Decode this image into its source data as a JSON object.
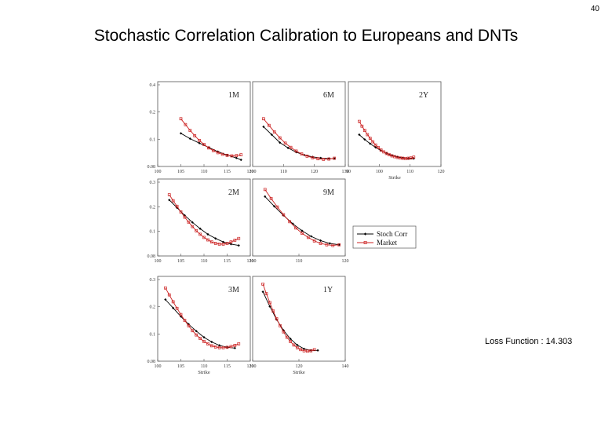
{
  "slide": {
    "page_number": "40",
    "title": "Stochastic Correlation Calibration to Europeans and DNTs",
    "loss_function": "Loss Function : 14.303"
  },
  "colors": {
    "stoch_corr": "#000000",
    "market": "#cc2222"
  },
  "chart_data": [
    {
      "type": "line",
      "title": "1M",
      "xlabel": "",
      "x_tick_labels": [
        "100",
        "105",
        "110",
        "115",
        "120"
      ],
      "y_tick_labels": [
        "0.4",
        "0.2",
        "0.1",
        "0.08"
      ],
      "xlim": [
        100,
        120
      ],
      "ylim": [
        0.08,
        0.4
      ],
      "series": [
        {
          "name": "Stoch Corr",
          "x": [
            105,
            107,
            109,
            111,
            113,
            115,
            117,
            118
          ],
          "y": [
            0.205,
            0.185,
            0.168,
            0.152,
            0.136,
            0.123,
            0.112,
            0.105
          ]
        },
        {
          "name": "Market",
          "x": [
            105,
            106,
            107,
            108,
            109,
            110,
            111,
            112,
            113,
            114,
            115,
            116,
            117,
            118
          ],
          "y": [
            0.26,
            0.238,
            0.216,
            0.196,
            0.178,
            0.163,
            0.15,
            0.14,
            0.132,
            0.126,
            0.122,
            0.12,
            0.121,
            0.124
          ]
        }
      ]
    },
    {
      "type": "line",
      "title": "6M",
      "xlabel": "",
      "x_tick_labels": [
        "100",
        "110",
        "120",
        "130"
      ],
      "y_tick_labels": [],
      "xlim": [
        96,
        130
      ],
      "ylim": [
        0.08,
        0.4
      ],
      "series": [
        {
          "name": "Stoch Corr",
          "x": [
            100,
            103,
            106,
            109,
            112,
            115,
            118,
            121,
            124,
            126
          ],
          "y": [
            0.23,
            0.2,
            0.17,
            0.15,
            0.134,
            0.123,
            0.116,
            0.112,
            0.11,
            0.11
          ]
        },
        {
          "name": "Market",
          "x": [
            100,
            102,
            104,
            106,
            108,
            110,
            112,
            114,
            116,
            118,
            120,
            122,
            124,
            126
          ],
          "y": [
            0.26,
            0.235,
            0.21,
            0.188,
            0.168,
            0.152,
            0.138,
            0.127,
            0.119,
            0.113,
            0.109,
            0.107,
            0.108,
            0.111
          ]
        }
      ]
    },
    {
      "type": "line",
      "title": "2Y",
      "xlabel": "Strike",
      "x_tick_labels": [
        "90",
        "100",
        "110",
        "120"
      ],
      "y_tick_labels": [],
      "xlim": [
        86,
        120
      ],
      "ylim": [
        0.08,
        0.4
      ],
      "series": [
        {
          "name": "Stoch Corr",
          "x": [
            90,
            92,
            94,
            96,
            98,
            100,
            102,
            104,
            106,
            108,
            110
          ],
          "y": [
            0.2,
            0.182,
            0.166,
            0.152,
            0.14,
            0.13,
            0.122,
            0.116,
            0.112,
            0.11,
            0.11
          ]
        },
        {
          "name": "Market",
          "x": [
            90,
            91,
            92,
            93,
            94,
            95,
            96,
            97,
            98,
            99,
            100,
            101,
            102,
            103,
            104,
            105,
            106,
            107,
            108,
            109,
            110
          ],
          "y": [
            0.25,
            0.232,
            0.216,
            0.2,
            0.186,
            0.173,
            0.161,
            0.151,
            0.142,
            0.135,
            0.129,
            0.124,
            0.12,
            0.117,
            0.114,
            0.112,
            0.111,
            0.11,
            0.111,
            0.112,
            0.115
          ]
        }
      ]
    },
    {
      "type": "line",
      "title": "2M",
      "xlabel": "",
      "x_tick_labels": [
        "100",
        "105",
        "110",
        "115",
        "120"
      ],
      "y_tick_labels": [
        "0.3",
        "0.2",
        "0.1",
        "0.08"
      ],
      "xlim": [
        100,
        124
      ],
      "ylim": [
        0.08,
        0.3
      ],
      "series": [
        {
          "name": "Stoch Corr",
          "x": [
            103,
            105,
            107,
            109,
            111,
            113,
            115,
            117,
            119,
            121
          ],
          "y": [
            0.24,
            0.218,
            0.196,
            0.176,
            0.158,
            0.142,
            0.13,
            0.12,
            0.114,
            0.11
          ]
        },
        {
          "name": "Market",
          "x": [
            103,
            104,
            105,
            106,
            107,
            108,
            109,
            110,
            111,
            112,
            113,
            114,
            115,
            116,
            117,
            118,
            119,
            120,
            121
          ],
          "y": [
            0.255,
            0.238,
            0.222,
            0.206,
            0.191,
            0.177,
            0.164,
            0.152,
            0.142,
            0.133,
            0.126,
            0.12,
            0.116,
            0.114,
            0.114,
            0.116,
            0.12,
            0.125,
            0.13
          ]
        }
      ]
    },
    {
      "type": "line",
      "title": "9M",
      "xlabel": "",
      "x_tick_labels": [
        "100",
        "110",
        "120"
      ],
      "y_tick_labels": [],
      "xlim": [
        96,
        126
      ],
      "ylim": [
        0.08,
        0.3
      ],
      "series": [
        {
          "name": "Stoch Corr",
          "x": [
            100,
            103,
            106,
            109,
            112,
            115,
            118,
            121,
            124
          ],
          "y": [
            0.25,
            0.222,
            0.196,
            0.172,
            0.152,
            0.136,
            0.124,
            0.116,
            0.112
          ]
        },
        {
          "name": "Market",
          "x": [
            100,
            102,
            104,
            106,
            108,
            110,
            112,
            114,
            116,
            118,
            120,
            122,
            124
          ],
          "y": [
            0.27,
            0.244,
            0.22,
            0.198,
            0.178,
            0.16,
            0.145,
            0.133,
            0.123,
            0.116,
            0.112,
            0.11,
            0.112
          ]
        }
      ]
    },
    {
      "type": "line",
      "title": "3M",
      "xlabel": "Strike",
      "x_tick_labels": [
        "100",
        "105",
        "110",
        "115",
        "120"
      ],
      "y_tick_labels": [
        "0.3",
        "0.2",
        "0.1",
        "0.08"
      ],
      "xlim": [
        100,
        124
      ],
      "ylim": [
        0.08,
        0.3
      ],
      "series": [
        {
          "name": "Stoch Corr",
          "x": [
            102,
            104,
            106,
            108,
            110,
            112,
            114,
            116,
            118,
            120
          ],
          "y": [
            0.24,
            0.218,
            0.196,
            0.176,
            0.158,
            0.142,
            0.13,
            0.121,
            0.116,
            0.114
          ]
        },
        {
          "name": "Market",
          "x": [
            102,
            103,
            104,
            105,
            106,
            107,
            108,
            109,
            110,
            111,
            112,
            113,
            114,
            115,
            116,
            117,
            118,
            119,
            120,
            121
          ],
          "y": [
            0.27,
            0.252,
            0.234,
            0.217,
            0.201,
            0.186,
            0.172,
            0.159,
            0.148,
            0.139,
            0.131,
            0.125,
            0.12,
            0.117,
            0.115,
            0.115,
            0.116,
            0.118,
            0.121,
            0.125
          ]
        }
      ]
    },
    {
      "type": "line",
      "title": "1Y",
      "xlabel": "Strike",
      "x_tick_labels": [
        "100",
        "120",
        "140"
      ],
      "y_tick_labels": [],
      "xlim": [
        86,
        140
      ],
      "ylim": [
        0.08,
        0.3
      ],
      "series": [
        {
          "name": "Stoch Corr",
          "x": [
            92,
            96,
            100,
            104,
            108,
            112,
            116,
            120,
            124
          ],
          "y": [
            0.26,
            0.222,
            0.188,
            0.16,
            0.138,
            0.122,
            0.112,
            0.108,
            0.108
          ]
        },
        {
          "name": "Market",
          "x": [
            92,
            94,
            96,
            98,
            100,
            102,
            104,
            106,
            108,
            110,
            112,
            114,
            116,
            118,
            120,
            122
          ],
          "y": [
            0.28,
            0.255,
            0.232,
            0.21,
            0.19,
            0.172,
            0.156,
            0.142,
            0.131,
            0.122,
            0.115,
            0.11,
            0.107,
            0.106,
            0.107,
            0.11
          ]
        }
      ]
    }
  ],
  "legend": {
    "items": [
      "Stoch Corr",
      "Market"
    ]
  }
}
